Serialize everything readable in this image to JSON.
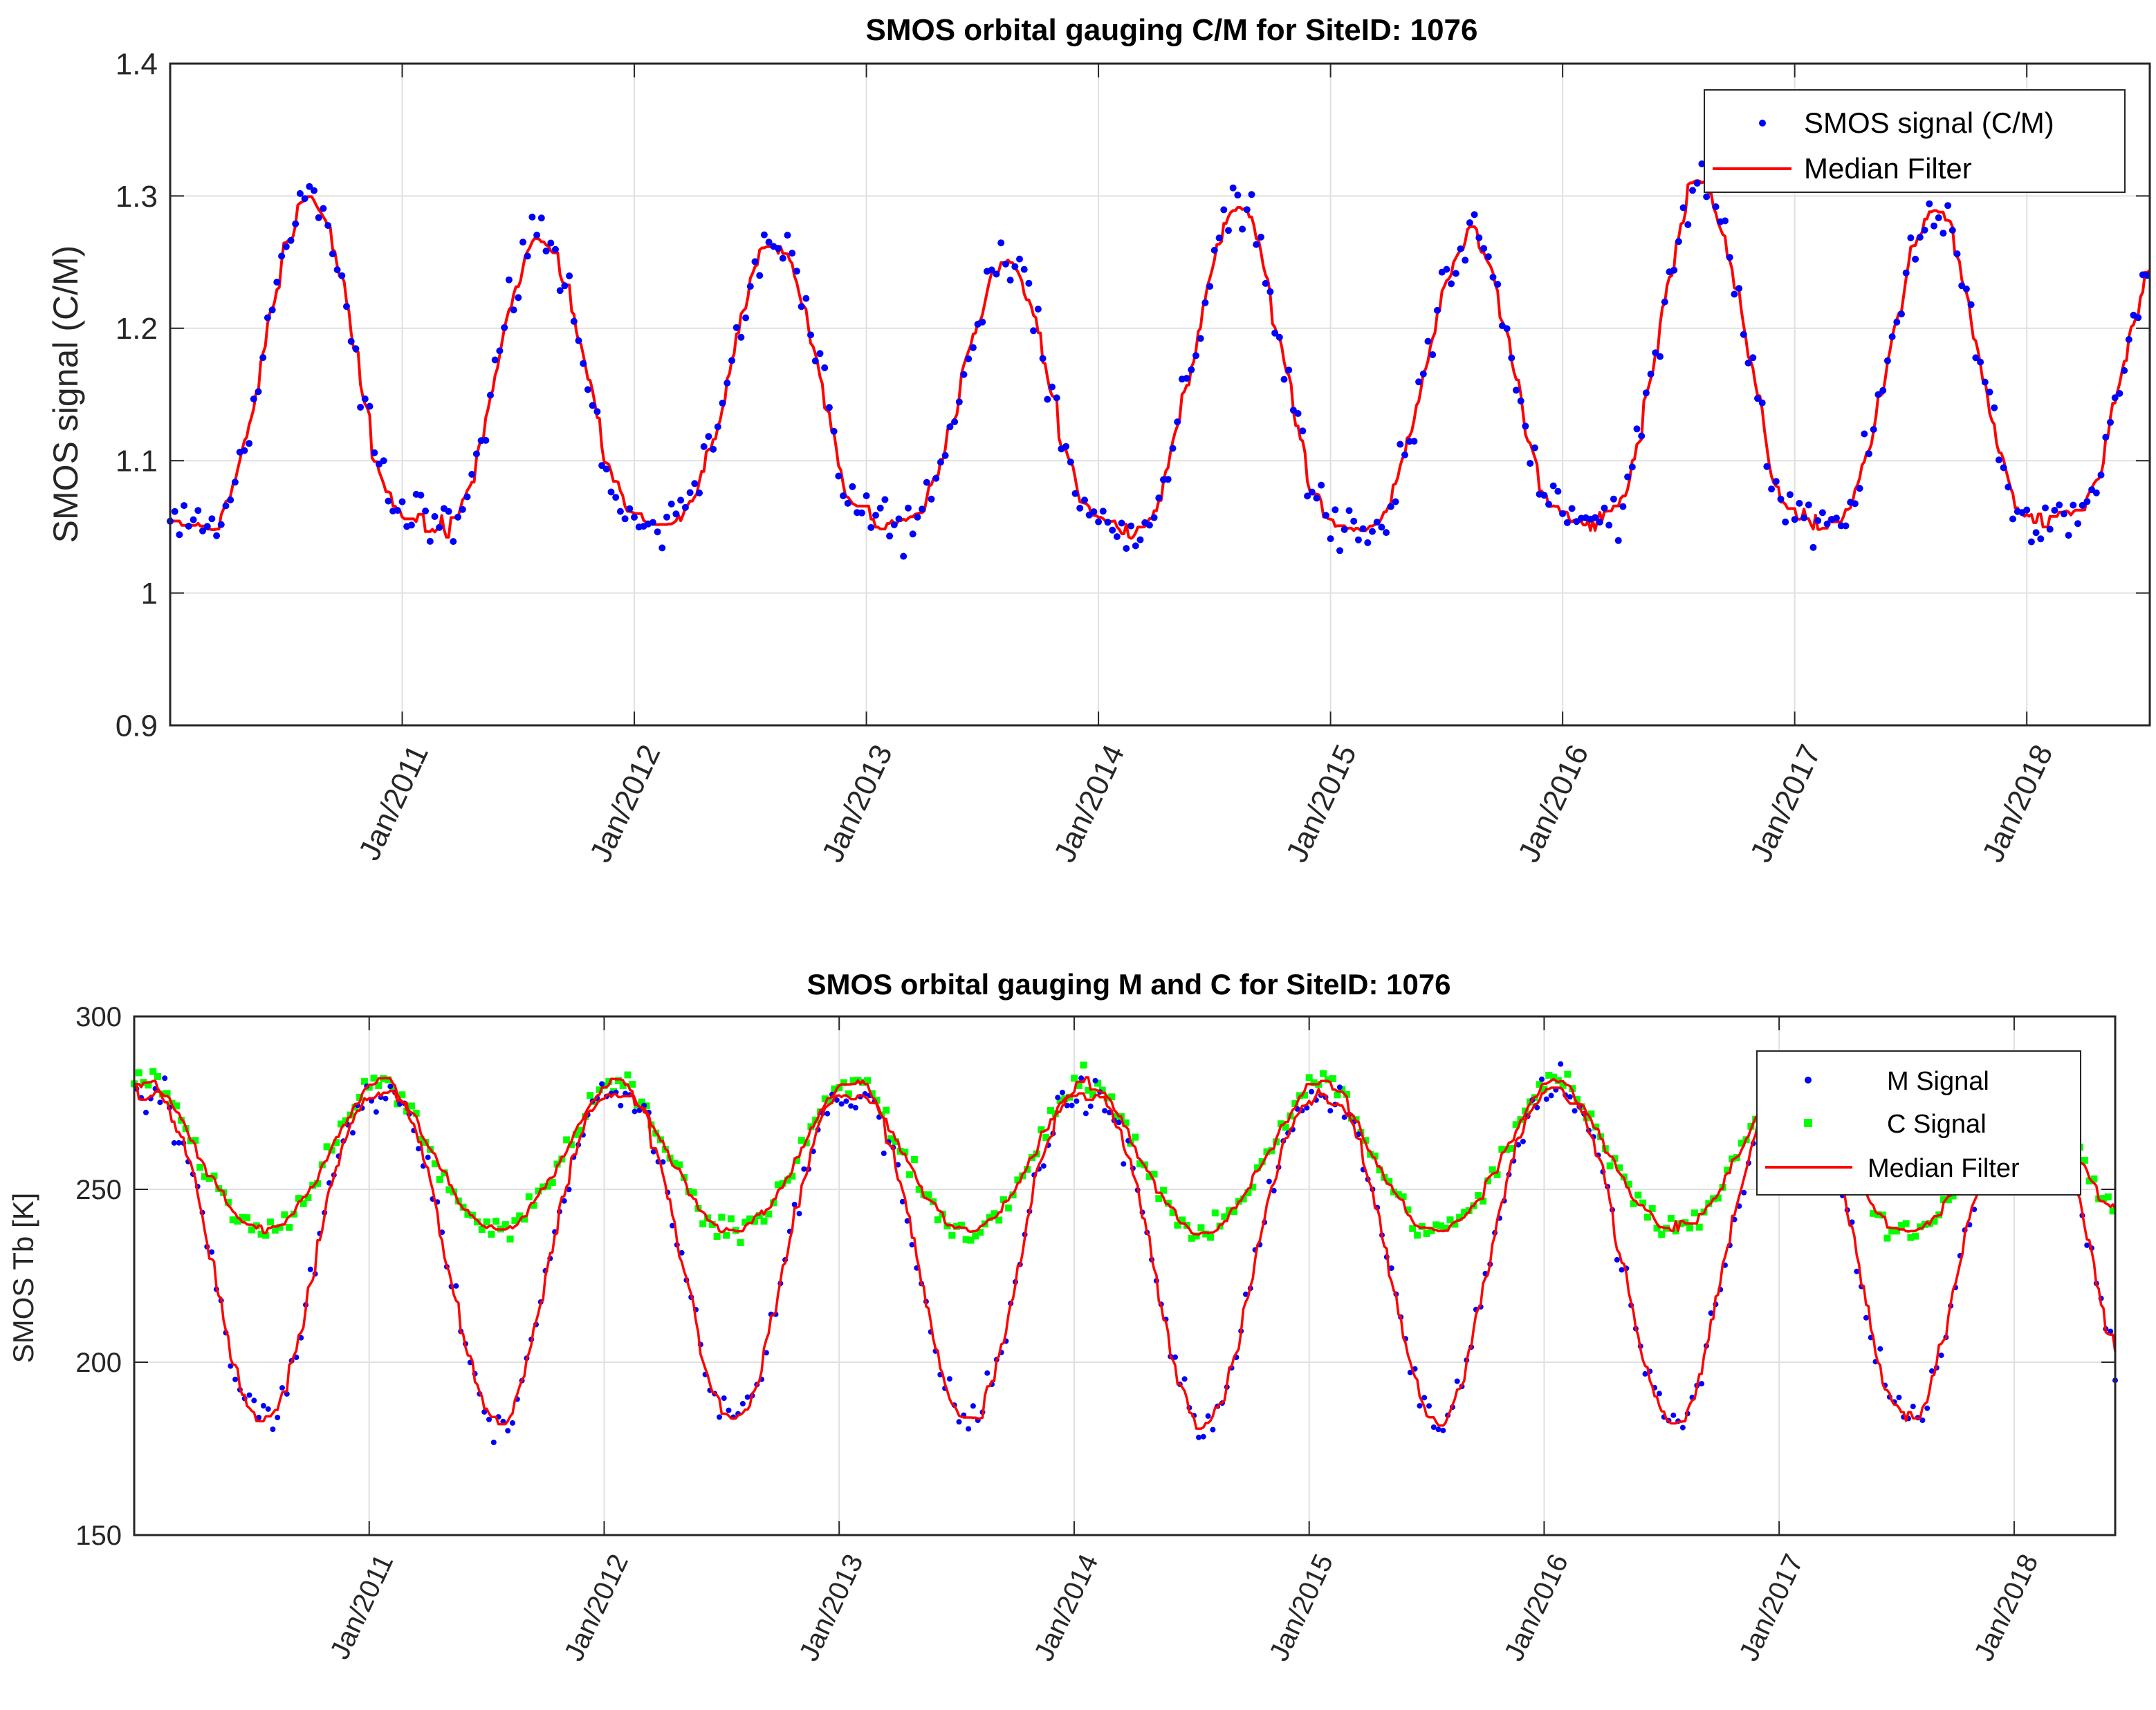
{
  "chart_data": [
    {
      "type": "scatter",
      "title": "SMOS orbital gauging C/M for SiteID: 1076",
      "xlabel": "",
      "ylabel": "SMOS signal (C/M)",
      "xlim": [
        2010.0,
        2018.53
      ],
      "ylim": [
        0.9,
        1.4
      ],
      "yticks": [
        {
          "v": 0.9,
          "label": "0.9"
        },
        {
          "v": 1.0,
          "label": "1"
        },
        {
          "v": 1.1,
          "label": "1.1"
        },
        {
          "v": 1.2,
          "label": "1.2"
        },
        {
          "v": 1.3,
          "label": "1.3"
        },
        {
          "v": 1.4,
          "label": "1.4"
        }
      ],
      "xticks": [
        {
          "v": 2011,
          "label": "Jan/2011"
        },
        {
          "v": 2012,
          "label": "Jan/2012"
        },
        {
          "v": 2013,
          "label": "Jan/2013"
        },
        {
          "v": 2014,
          "label": "Jan/2014"
        },
        {
          "v": 2015,
          "label": "Jan/2015"
        },
        {
          "v": 2016,
          "label": "Jan/2016"
        },
        {
          "v": 2017,
          "label": "Jan/2017"
        },
        {
          "v": 2018,
          "label": "Jan/2018"
        }
      ],
      "grid": true,
      "legend_position": "top-right",
      "series": [
        {
          "name": "SMOS signal (C/M)",
          "style": "dots",
          "color": "#0000ff"
        },
        {
          "name": "Median Filter",
          "style": "line",
          "color": "#ff0000"
        }
      ],
      "model": {
        "description": "annual cycle: low in winter, high in mid-year",
        "base": 1.05,
        "peak_phase_years": 0.6,
        "peaks": [
          1.3,
          1.27,
          1.27,
          1.25,
          1.29,
          1.27,
          1.31,
          1.29,
          1.26
        ],
        "start": 2010.0,
        "end": 2018.53,
        "samples_per_year": 100,
        "scatter_amplitude": 0.025,
        "jump_2016": {
          "x": 2016.28,
          "to": 1.12
        }
      }
    },
    {
      "type": "scatter",
      "title": "SMOS orbital gauging M and C for SiteID: 1076",
      "xlabel": "",
      "ylabel": "SMOS Tb [K]",
      "xlim": [
        2010.0,
        2018.43
      ],
      "ylim": [
        150,
        300
      ],
      "yticks": [
        {
          "v": 150,
          "label": "150"
        },
        {
          "v": 200,
          "label": "200"
        },
        {
          "v": 250,
          "label": "250"
        },
        {
          "v": 300,
          "label": "300"
        }
      ],
      "xticks": [
        {
          "v": 2011,
          "label": "Jan/2011"
        },
        {
          "v": 2012,
          "label": "Jan/2012"
        },
        {
          "v": 2013,
          "label": "Jan/2013"
        },
        {
          "v": 2014,
          "label": "Jan/2014"
        },
        {
          "v": 2015,
          "label": "Jan/2015"
        },
        {
          "v": 2016,
          "label": "Jan/2016"
        },
        {
          "v": 2017,
          "label": "Jan/2017"
        },
        {
          "v": 2018,
          "label": "Jan/2018"
        }
      ],
      "grid": true,
      "legend_position": "top-right",
      "series": [
        {
          "name": "M Signal",
          "style": "dots",
          "color": "#0000ff"
        },
        {
          "name": "C Signal",
          "style": "squares",
          "color": "#00ff00"
        },
        {
          "name": "Median Filter",
          "style": "line",
          "color": "#ff0000"
        }
      ],
      "model": {
        "description": "annual cycle: high in winter (~275-285 K), low in summer",
        "m_winter_peak": 278,
        "m_summer_low": 183,
        "c_winter_peak": 282,
        "c_summer_low": 238,
        "summer_phase_years": 0.55,
        "start": 2010.0,
        "end": 2018.43,
        "samples_per_year": 100,
        "scatter_amplitude_m": 6,
        "scatter_amplitude_c": 4
      }
    }
  ]
}
